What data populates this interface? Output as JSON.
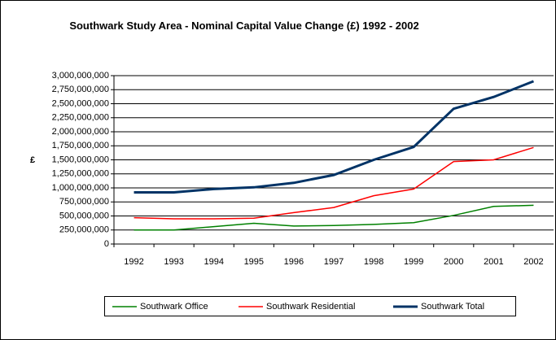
{
  "chart_data": {
    "type": "line",
    "title": "Southwark Study Area - Nominal Capital Value Change (£) 1992 - 2002",
    "y_label": "£",
    "categories": [
      "1992",
      "1993",
      "1994",
      "1995",
      "1996",
      "1997",
      "1998",
      "1999",
      "2000",
      "2001",
      "2002"
    ],
    "series": [
      {
        "name": "Southwark Office",
        "color": "#008000",
        "width": 1.5,
        "values": [
          250000000,
          250000000,
          310000000,
          370000000,
          320000000,
          330000000,
          350000000,
          380000000,
          510000000,
          670000000,
          690000000
        ]
      },
      {
        "name": "Southwark Residential",
        "color": "#ff0000",
        "width": 1.5,
        "values": [
          470000000,
          450000000,
          450000000,
          460000000,
          560000000,
          650000000,
          860000000,
          980000000,
          1470000000,
          1500000000,
          1720000000
        ]
      },
      {
        "name": "Southwark Total",
        "color": "#003366",
        "width": 3,
        "values": [
          920000000,
          920000000,
          980000000,
          1010000000,
          1090000000,
          1230000000,
          1500000000,
          1730000000,
          2410000000,
          2620000000,
          2900000000
        ]
      }
    ],
    "ylim": [
      0,
      3000000000
    ],
    "yticks": [
      0,
      {
        "value": 250000000,
        "label": "250,000,000"
      },
      {
        "value": 500000000,
        "label": "500,000,000"
      },
      {
        "value": 750000000,
        "label": "750,000,000"
      },
      {
        "value": 1000000000,
        "label": "1,000,000,000"
      },
      {
        "value": 1250000000,
        "label": "1,250,000,000"
      },
      {
        "value": 1500000000,
        "label": "1,500,000,000"
      },
      {
        "value": 1750000000,
        "label": "1,750,000,000"
      },
      {
        "value": 2000000000,
        "label": "2,000,000,000"
      },
      {
        "value": 2250000000,
        "label": "2,250,000,000"
      },
      {
        "value": 2500000000,
        "label": "2,500,000,000"
      },
      {
        "value": 2750000000,
        "label": "2,750,000,000"
      },
      {
        "value": 3000000000,
        "label": "3,000,000,000"
      }
    ],
    "grid": true
  }
}
